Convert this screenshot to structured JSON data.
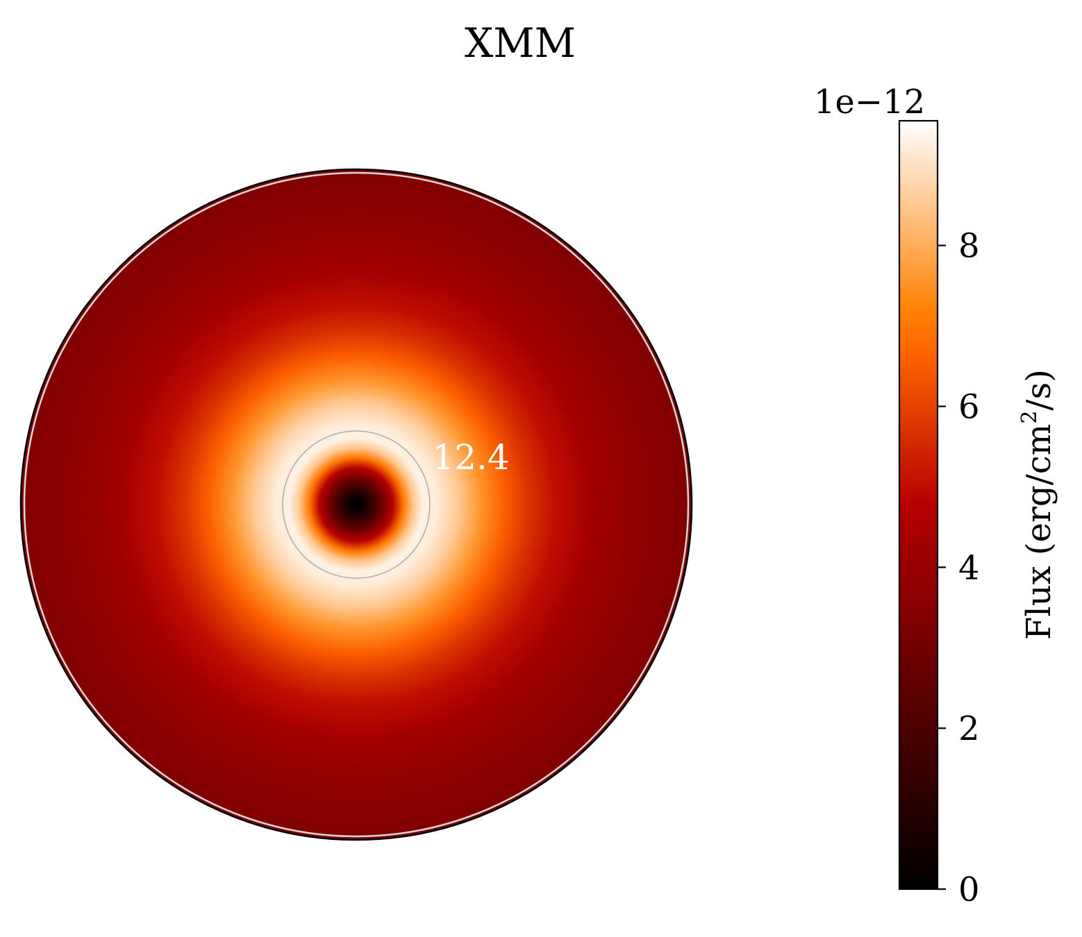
{
  "chart_data": {
    "type": "heatmap",
    "projection": "polar",
    "title": "XMM",
    "colormap": "gist_heat",
    "annotation": {
      "text": "12.4",
      "color": "#ffffff"
    },
    "radial_profile": {
      "description_units": "fraction of outer radius vs flux (erg/cm^2/s)",
      "r": [
        0.0,
        0.02,
        0.05,
        0.08,
        0.11,
        0.14,
        0.17,
        0.2,
        0.24,
        0.3,
        0.37,
        0.44,
        0.52,
        0.6,
        0.7,
        0.8,
        0.9,
        1.0
      ],
      "flux": [
        0.0,
        3e-13,
        1.5e-12,
        3e-12,
        4.8e-12,
        7e-12,
        8.5e-12,
        9.3e-12,
        9.2e-12,
        8.6e-12,
        7.6e-12,
        6.6e-12,
        5.7e-12,
        5e-12,
        4.3e-12,
        3.9e-12,
        3.6e-12,
        3.4e-12
      ]
    },
    "inner_circle_radius_fraction": 0.22,
    "colorbar": {
      "label": "Flux (erg/cm² /s)",
      "label_main": "Flux (erg/cm",
      "label_sup": "2",
      "label_end": "/s)",
      "offset_text": "1e−12",
      "ticks": [
        0,
        2,
        4,
        6,
        8
      ],
      "tick_labels": [
        "0",
        "2",
        "4",
        "6",
        "8"
      ],
      "vmin": 0,
      "vmax": 9.55
    },
    "colors": {
      "ring": "#b0b0b0",
      "outer_ring": "#d9d9d9",
      "frame": "#000000"
    }
  }
}
